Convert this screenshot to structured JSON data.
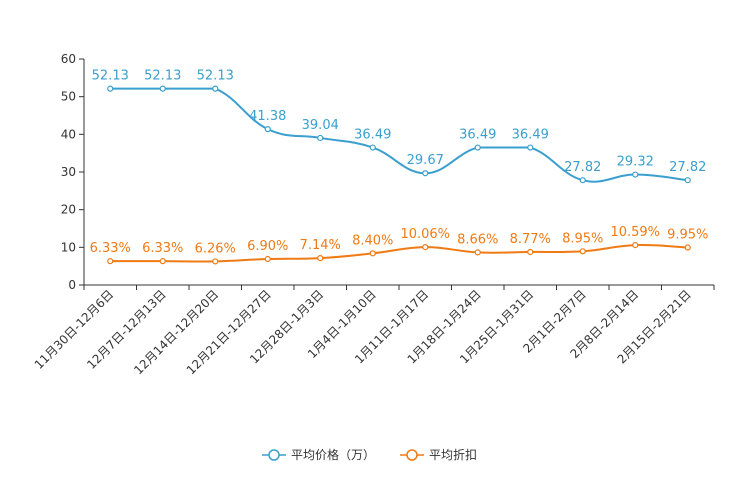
{
  "chart_data": {
    "type": "line",
    "title": "",
    "xlabel": "",
    "ylabel": "",
    "ylim": [
      0,
      60
    ],
    "yticks": [
      0,
      10,
      20,
      30,
      40,
      50,
      60
    ],
    "categories": [
      "11月30日-12月6日",
      "12月7日-12月13日",
      "12月14日-12月20日",
      "12月21日-12月27日",
      "12月28日-1月3日",
      "1月4日-1月10日",
      "1月11日-1月17日",
      "1月18日-1月24日",
      "1月25日-1月31日",
      "2月1日-2月7日",
      "2月8日-2月14日",
      "2月15日-2月21日"
    ],
    "series": [
      {
        "name": "平均价格（万）",
        "color": "#3a9fce",
        "values": [
          52.13,
          52.13,
          52.13,
          41.38,
          39.04,
          36.49,
          29.67,
          36.49,
          36.49,
          27.82,
          29.32,
          27.82
        ],
        "labels": [
          "52.13",
          "52.13",
          "52.13",
          "41.38",
          "39.04",
          "36.49",
          "29.67",
          "36.49",
          "36.49",
          "27.82",
          "29.32",
          "27.82"
        ]
      },
      {
        "name": "平均折扣",
        "color": "#f07a14",
        "values": [
          6.33,
          6.33,
          6.26,
          6.9,
          7.14,
          8.4,
          10.06,
          8.66,
          8.77,
          8.95,
          10.59,
          9.95
        ],
        "labels": [
          "6.33%",
          "6.33%",
          "6.26%",
          "6.90%",
          "7.14%",
          "8.40%",
          "10.06%",
          "8.66%",
          "8.77%",
          "8.95%",
          "10.59%",
          "9.95%"
        ]
      }
    ],
    "legend_position": "bottom-center",
    "grid": false
  }
}
